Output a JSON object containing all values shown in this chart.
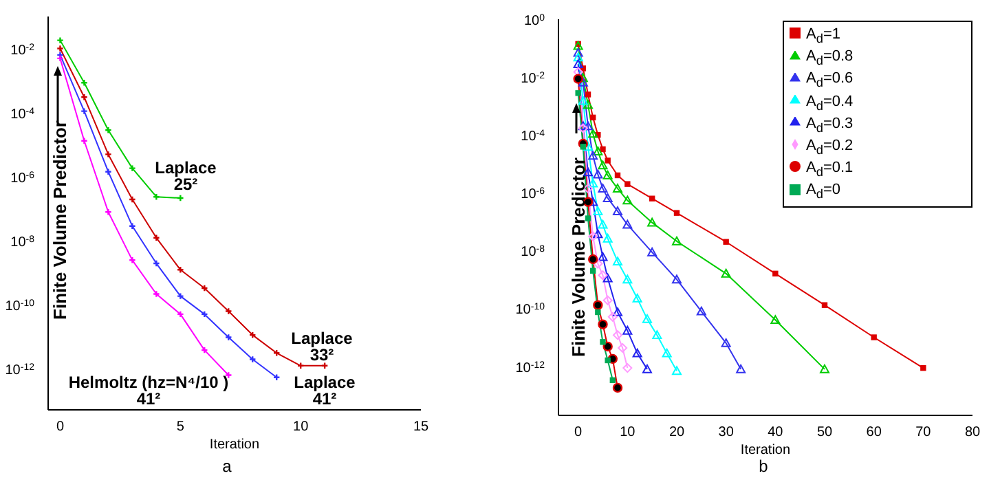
{
  "chart_data": [
    {
      "type": "line",
      "log": "y",
      "xlabel": "Iteration",
      "ylabel": "Finite Volume Predictor",
      "marker": "cross",
      "legend": false,
      "xlim": [
        -0.5,
        15
      ],
      "xticks": [
        0,
        5,
        10,
        15
      ],
      "ylim": [
        5e-14,
        0.1
      ],
      "yticks": [
        {
          "value": 0.01,
          "label": "10$^{-2}$"
        },
        {
          "value": 0.0001,
          "label": "10$^{-4}$"
        },
        {
          "value": 1e-06,
          "label": "10$^{-6}$"
        },
        {
          "value": 1e-08,
          "label": "10$^{-8}$"
        },
        {
          "value": 1e-10,
          "label": "10$^{-10}$"
        },
        {
          "value": 1e-12,
          "label": "10$^{-12}$"
        }
      ],
      "series": [
        {
          "color": "#00cc00",
          "x": [
            0,
            1,
            2,
            3,
            4,
            5
          ],
          "values": [
            0.018,
            0.00085,
            2.8e-05,
            1.8e-06,
            2.3e-07,
            2.1e-07
          ]
        },
        {
          "color": "#cc0000",
          "x": [
            0,
            1,
            2,
            3,
            4,
            5,
            6,
            7,
            8,
            9,
            10,
            11
          ],
          "values": [
            0.01,
            0.0003,
            4.9e-06,
            1.9e-07,
            1.2e-08,
            1.2e-09,
            3.2e-10,
            6.1e-11,
            1.1e-11,
            3e-12,
            1.2e-12,
            1.2e-12
          ]
        },
        {
          "color": "#3333ff",
          "x": [
            0,
            1,
            2,
            3,
            4,
            5,
            6,
            7,
            8,
            9
          ],
          "values": [
            0.0063,
            0.00011,
            1.4e-06,
            2.8e-08,
            1.9e-09,
            1.8e-10,
            4.9e-11,
            9.3e-12,
            1.9e-12,
            5.2e-13
          ]
        },
        {
          "color": "#ff00ff",
          "x": [
            0,
            1,
            2,
            3,
            4,
            5,
            6,
            7
          ],
          "values": [
            0.0049,
            1.3e-05,
            7.7e-08,
            2.4e-09,
            2.1e-10,
            4.9e-11,
            3.7e-12,
            6.1e-13
          ]
        }
      ],
      "annotations": [
        "Laplace\n25²",
        "Laplace\n33²",
        "Laplace\n41²",
        "Helmoltz (hz=N⁴/10 )\n41²",
        "a"
      ]
    },
    {
      "type": "line",
      "log": "y",
      "xlabel": "Iteration",
      "ylabel": "Finite Volume Predictor",
      "legend": "top right",
      "xlim": [
        -4,
        80
      ],
      "xticks": [
        0,
        10,
        20,
        30,
        40,
        50,
        60,
        70,
        80
      ],
      "ylim": [
        2e-14,
        1
      ],
      "yticks": [
        {
          "value": 1,
          "label": "10$^{0}$"
        },
        {
          "value": 0.01,
          "label": "10$^{-2}$"
        },
        {
          "value": 0.0001,
          "label": "10$^{-4}$"
        },
        {
          "value": 1e-06,
          "label": "10$^{-6}$"
        },
        {
          "value": 1e-08,
          "label": "10$^{-8}$"
        },
        {
          "value": 1e-10,
          "label": "10$^{-10}$"
        },
        {
          "value": 1e-12,
          "label": "10$^{-12}$"
        }
      ],
      "series": [
        {
          "name": "A$_{d}$=1",
          "color": "#dd0000",
          "marker": "square",
          "x": [
            0,
            1,
            2,
            3,
            4,
            5,
            6,
            8,
            10,
            15,
            20,
            30,
            40,
            50,
            60,
            70
          ],
          "values": [
            0.14,
            0.02,
            0.0025,
            0.0004,
            0.0001,
            3.2e-05,
            1.3e-05,
            4e-06,
            2e-06,
            6.3e-07,
            2e-07,
            2e-08,
            1.6e-09,
            1.3e-10,
            1e-11,
            8.7e-13
          ]
        },
        {
          "name": "A$_{d}$=0.8",
          "color": "#00cc00",
          "marker": "triangle",
          "x": [
            0,
            1,
            2,
            3,
            4,
            5,
            6,
            8,
            10,
            15,
            20,
            30,
            40,
            50
          ],
          "values": [
            0.12,
            0.0093,
            0.0011,
            0.00011,
            2.7e-05,
            8.9e-06,
            4e-06,
            1.4e-06,
            5.4e-07,
            9.3e-08,
            2.1e-08,
            1.6e-09,
            4e-11,
            7.9e-13
          ]
        },
        {
          "name": "A$_{d}$=0.6",
          "color": "#3333ee",
          "marker": "triangle",
          "x": [
            0,
            1,
            2,
            3,
            4,
            5,
            6,
            8,
            10,
            15,
            20,
            25,
            30,
            33
          ],
          "values": [
            0.069,
            0.0065,
            0.0002,
            1.9e-05,
            4.3e-06,
            1.4e-06,
            6.5e-07,
            2.3e-07,
            7.9e-08,
            8.7e-09,
            1e-09,
            7.9e-11,
            6.3e-12,
            7.9e-13
          ]
        },
        {
          "name": "A$_{d}$=0.4",
          "color": "#00ffff",
          "marker": "triangle",
          "x": [
            0,
            1,
            2,
            3,
            4,
            5,
            6,
            8,
            10,
            12,
            14,
            16,
            18,
            20
          ],
          "values": [
            0.048,
            0.0015,
            3.9e-05,
            2.1e-06,
            2.3e-07,
            7.9e-08,
            2.6e-08,
            4.2e-09,
            1e-09,
            2.2e-10,
            4.3e-11,
            1.2e-11,
            2.8e-12,
            6.9e-13
          ]
        },
        {
          "name": "A$_{d}$=0.3",
          "color": "#2222ee",
          "marker": "triangle",
          "x": [
            0,
            1,
            2,
            3,
            4,
            5,
            6,
            8,
            10,
            12,
            14
          ],
          "values": [
            0.028,
            0.0002,
            5.1e-06,
            4.8e-07,
            3.7e-08,
            6e-09,
            1.1e-09,
            7.4e-11,
            1.7e-11,
            2.8e-12,
            7.9e-13
          ]
        },
        {
          "name": "A$_{d}$=0.2",
          "color": "#ff99ff",
          "marker": "diamond",
          "x": [
            0,
            1,
            2,
            3,
            4,
            5,
            6,
            7,
            8,
            9,
            10
          ],
          "values": [
            0.015,
            0.00017,
            1.4e-06,
            3.1e-08,
            3.5e-09,
            1.4e-09,
            1.9e-10,
            5.1e-11,
            1.2e-11,
            4.3e-12,
            8.7e-13
          ]
        },
        {
          "name": "A$_{d}$=0.1",
          "color": "#dd0000",
          "marker": "circle",
          "x": [
            0,
            1,
            2,
            3,
            4,
            5,
            6,
            7,
            8
          ],
          "values": [
            0.0087,
            5e-05,
            4.8e-07,
            5e-09,
            1.3e-10,
            2.8e-11,
            4.8e-12,
            1.8e-12,
            1.8e-13
          ]
        },
        {
          "name": "A$_{d}$=0",
          "color": "#00aa55",
          "marker": "square",
          "x": [
            0,
            1,
            2,
            3,
            4,
            5,
            6,
            7
          ],
          "values": [
            0.0028,
            3.9e-05,
            1.3e-07,
            2e-09,
            7.4e-11,
            6.9e-12,
            1.6e-12,
            3.3e-13
          ]
        }
      ],
      "annotations": [
        "b"
      ]
    }
  ]
}
